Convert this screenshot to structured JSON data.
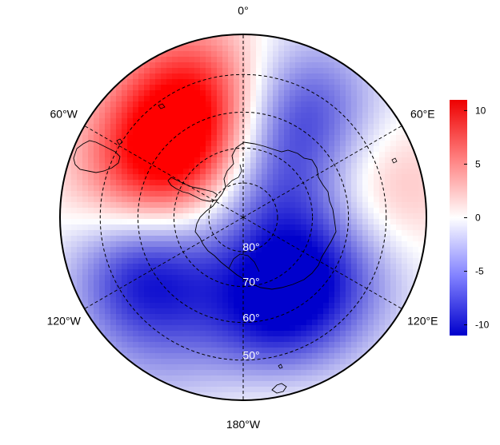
{
  "map": {
    "projection": "south-polar-stereographic",
    "longitude_labels": [
      {
        "lon": 0,
        "text": "0°"
      },
      {
        "lon": -60,
        "text": "60°W"
      },
      {
        "lon": 60,
        "text": "60°E"
      },
      {
        "lon": -120,
        "text": "120°W"
      },
      {
        "lon": 120,
        "text": "120°E"
      },
      {
        "lon": 180,
        "text": "180°W"
      }
    ],
    "latitude_labels": [
      {
        "lat": -80,
        "text": "80°"
      },
      {
        "lat": -70,
        "text": "70°"
      },
      {
        "lat": -60,
        "text": "60°"
      },
      {
        "lat": -50,
        "text": "50°"
      }
    ],
    "latitude_circles": [
      -80,
      -70,
      -60,
      -50
    ],
    "outer_latitude": -40,
    "meridians": [
      0,
      60,
      120,
      180,
      240,
      300
    ]
  },
  "colorbar": {
    "ticks": [
      {
        "value": 10,
        "label": "10"
      },
      {
        "value": 5,
        "label": "5"
      },
      {
        "value": 0,
        "label": "0"
      },
      {
        "value": -5,
        "label": "-5"
      },
      {
        "value": -10,
        "label": "-10"
      }
    ],
    "min": -11,
    "max": 11,
    "colors": {
      "low": "#0000cc",
      "mid": "#ffffff",
      "high": "#ff0000"
    }
  },
  "field_anomalies": [
    {
      "lon": -45,
      "lat": -62,
      "value": 10
    },
    {
      "lon": -20,
      "lat": -52,
      "value": 7
    },
    {
      "lon": -75,
      "lat": -58,
      "value": 4
    },
    {
      "lon": 30,
      "lat": -55,
      "value": -7
    },
    {
      "lon": 80,
      "lat": -52,
      "value": 4
    },
    {
      "lon": -120,
      "lat": -58,
      "value": -10
    },
    {
      "lon": 165,
      "lat": -58,
      "value": -9
    },
    {
      "lon": 120,
      "lat": -60,
      "value": -6
    },
    {
      "lon": 150,
      "lat": -72,
      "value": -3
    },
    {
      "lon": 170,
      "lat": -45,
      "value": 3
    },
    {
      "lon": 100,
      "lat": -80,
      "value": -2
    },
    {
      "lon": 40,
      "lat": -75,
      "value": -4
    },
    {
      "lon": -150,
      "lat": -45,
      "value": -2
    }
  ]
}
